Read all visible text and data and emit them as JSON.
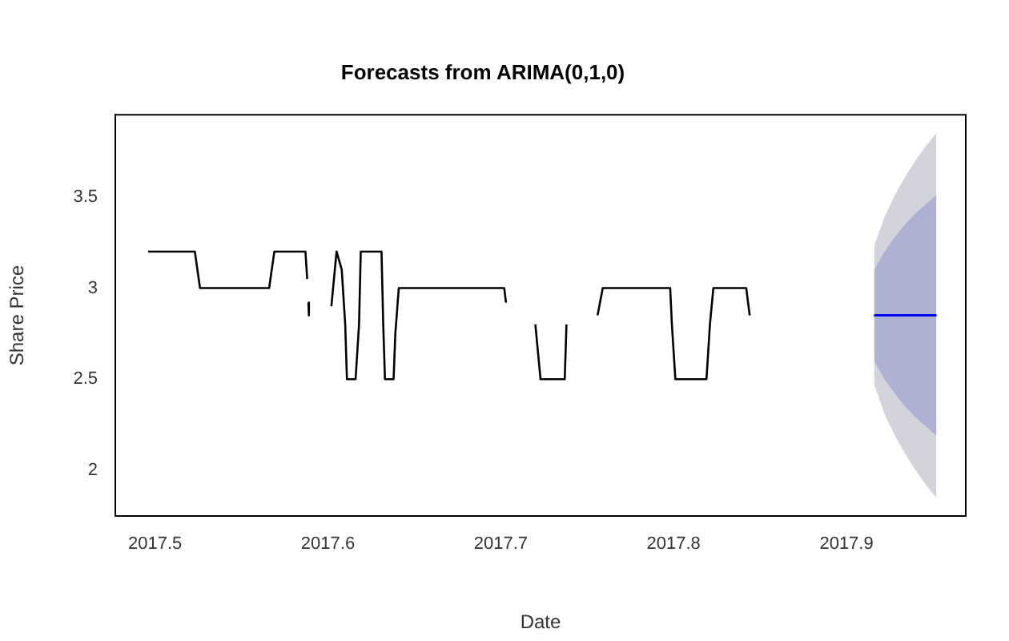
{
  "chart_data": {
    "type": "line",
    "title": "Forecasts from ARIMA(0,1,0)",
    "xlabel": "Date",
    "ylabel": "Share Price",
    "xlim": [
      2017.477,
      2017.969
    ],
    "xticks": [
      2017.5,
      2017.6,
      2017.7,
      2017.8,
      2017.9
    ],
    "ylim": [
      1.75,
      3.95
    ],
    "yticks": [
      2.0,
      2.5,
      3.0,
      3.5
    ],
    "grid": false,
    "legend": false,
    "marker": "none",
    "line_style": "solid",
    "series": [
      {
        "color": "#000000",
        "x": [
          2017.496,
          2017.523,
          2017.526,
          2017.566,
          2017.569,
          2017.587,
          2017.588,
          2017.5883,
          2017.5887,
          2017.589,
          2017.5895,
          2017.602,
          2017.604,
          2017.605,
          2017.608,
          2017.61,
          2017.611,
          2017.616,
          2017.618,
          2017.619,
          2017.631,
          2017.632,
          2017.633,
          2017.638,
          2017.639,
          2017.641,
          2017.702,
          2017.703,
          2017.712,
          2017.72,
          2017.723,
          2017.737,
          2017.738,
          2017.748,
          2017.756,
          2017.759,
          2017.798,
          2017.799,
          2017.801,
          2017.819,
          2017.821,
          2017.823,
          2017.842,
          2017.844
        ],
        "values": [
          3.2,
          3.2,
          3.0,
          3.0,
          3.2,
          3.2,
          3.05,
          null,
          2.92,
          2.85,
          null,
          2.9,
          3.1,
          3.2,
          3.1,
          2.8,
          2.5,
          2.5,
          2.8,
          3.2,
          3.2,
          2.8,
          2.5,
          2.5,
          2.75,
          3.0,
          3.0,
          2.92,
          null,
          2.8,
          2.5,
          2.5,
          2.8,
          null,
          2.85,
          3.0,
          3.0,
          2.8,
          2.5,
          2.5,
          2.8,
          3.0,
          3.0,
          2.85
        ]
      },
      {
        "color": "#0000ff",
        "x": [
          2017.916,
          2017.922,
          2017.928,
          2017.934,
          2017.94,
          2017.946,
          2017.952
        ],
        "values": [
          2.85,
          2.85,
          2.85,
          2.85,
          2.85,
          2.85,
          2.85
        ],
        "lower": [
          2.47,
          2.31,
          2.19,
          2.09,
          2.0,
          1.92,
          1.85
        ],
        "upper": [
          3.23,
          3.39,
          3.51,
          3.61,
          3.7,
          3.78,
          3.85
        ]
      },
      {
        "color": "#0000ff",
        "x": [
          2017.916,
          2017.922,
          2017.928,
          2017.934,
          2017.94,
          2017.946,
          2017.952
        ],
        "values": [
          2.85,
          2.85,
          2.85,
          2.85,
          2.85,
          2.85,
          2.85
        ],
        "lower": [
          2.6,
          2.5,
          2.42,
          2.35,
          2.29,
          2.24,
          2.19
        ],
        "upper": [
          3.1,
          3.2,
          3.28,
          3.35,
          3.41,
          3.46,
          3.51
        ]
      }
    ]
  }
}
